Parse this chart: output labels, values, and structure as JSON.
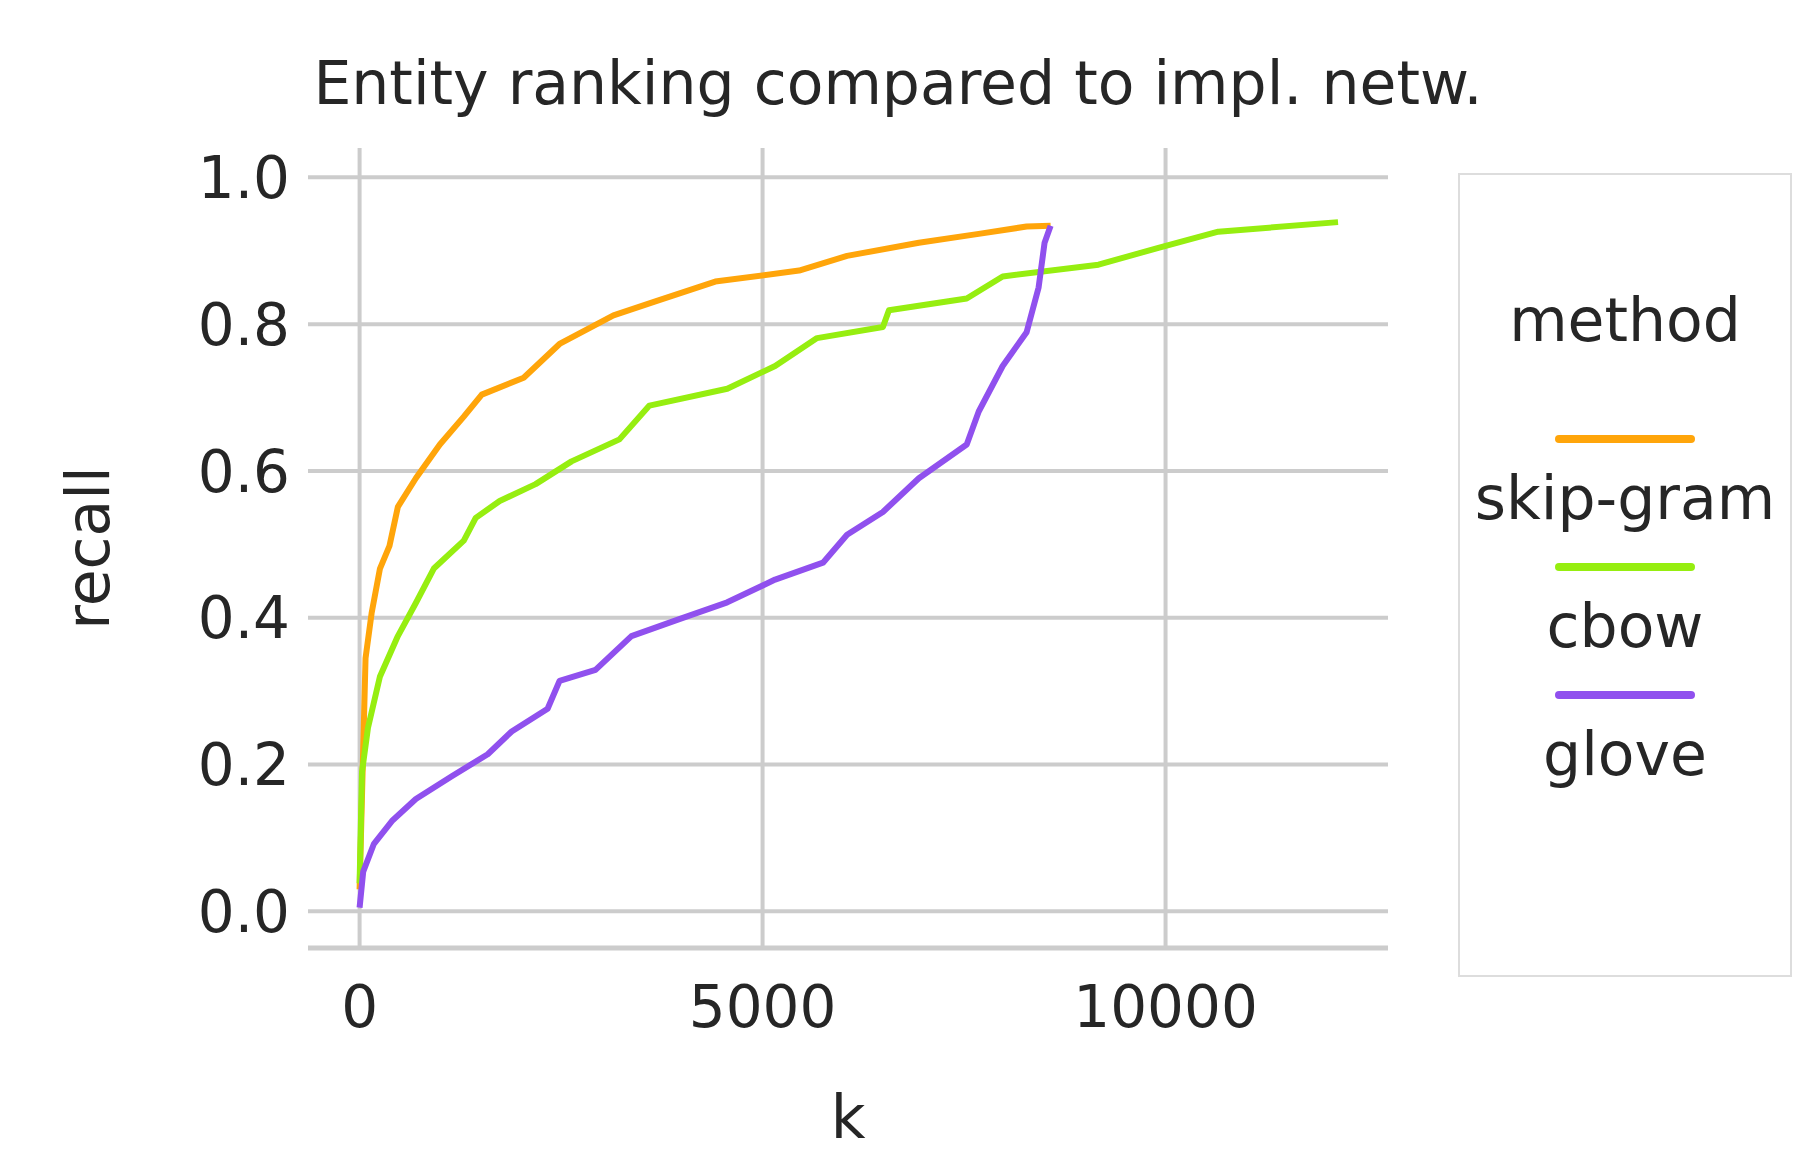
{
  "chart_data": {
    "type": "line",
    "title": "Entity ranking compared to impl. netw.",
    "xlabel": "k",
    "ylabel": "recall",
    "legend_title": "method",
    "legend": "right",
    "grid": true,
    "xlim": [
      -640,
      12760
    ],
    "ylim": [
      -0.05,
      1.04
    ],
    "xticks": [
      0,
      5000,
      10000
    ],
    "yticks": [
      {
        "value": 0,
        "label": "0.0"
      },
      0.2,
      0.4,
      0.6,
      0.8,
      {
        "value": 1,
        "label": "1.0"
      }
    ],
    "series": [
      {
        "name": "skip-gram",
        "color": "#ffa50a",
        "x": [
          0,
          74,
          149,
          253,
          371,
          475,
          698,
          996,
          1293,
          1516,
          2036,
          2481,
          3150,
          3670,
          4413,
          5453,
          6048,
          6939,
          7682,
          8276,
          8574
        ],
        "values": [
          0.03,
          0.345,
          0.406,
          0.467,
          0.498,
          0.551,
          0.59,
          0.636,
          0.674,
          0.704,
          0.727,
          0.773,
          0.812,
          0.831,
          0.858,
          0.873,
          0.893,
          0.911,
          0.923,
          0.933,
          0.934
        ]
      },
      {
        "name": "cbow",
        "color": "#96ee10",
        "x": [
          0,
          30,
          104,
          253,
          475,
          698,
          921,
          1293,
          1441,
          1738,
          2184,
          2630,
          3224,
          3596,
          4562,
          5156,
          5676,
          6493,
          6568,
          7533,
          7979,
          9168,
          9911,
          10654,
          12140
        ],
        "values": [
          0.038,
          0.19,
          0.25,
          0.32,
          0.375,
          0.42,
          0.467,
          0.505,
          0.536,
          0.559,
          0.582,
          0.613,
          0.643,
          0.689,
          0.712,
          0.743,
          0.781,
          0.796,
          0.819,
          0.835,
          0.865,
          0.881,
          0.904,
          0.926,
          0.939
        ]
      },
      {
        "name": "glove",
        "color": "#9050ee",
        "x": [
          0,
          45,
          178,
          401,
          698,
          1144,
          1590,
          1887,
          2333,
          2481,
          2927,
          3373,
          3967,
          4562,
          5156,
          5750,
          6048,
          6493,
          6939,
          7533,
          7682,
          7979,
          8276,
          8425,
          8499,
          8574
        ],
        "values": [
          0.005,
          0.054,
          0.092,
          0.123,
          0.153,
          0.184,
          0.214,
          0.245,
          0.276,
          0.314,
          0.329,
          0.375,
          0.398,
          0.421,
          0.452,
          0.475,
          0.513,
          0.544,
          0.59,
          0.636,
          0.681,
          0.743,
          0.789,
          0.85,
          0.911,
          0.934
        ]
      }
    ]
  }
}
